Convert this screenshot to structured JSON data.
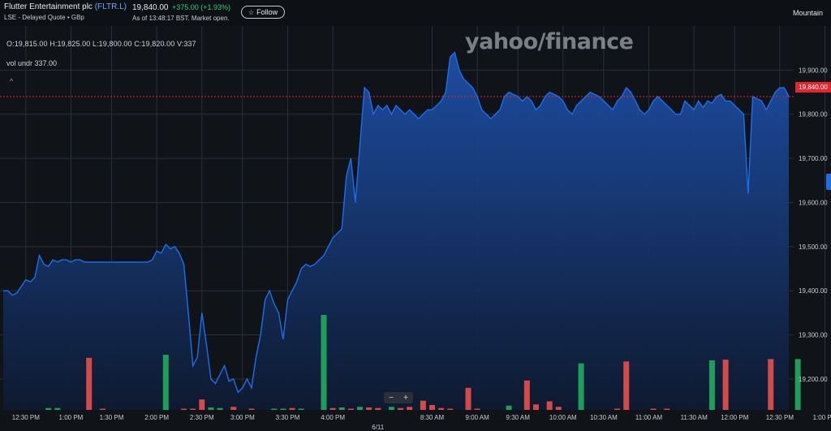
{
  "header": {
    "company_name": "Flutter Entertainment plc",
    "ticker": "(FLTR.L)",
    "sub": "LSE - Delayed Quote • GBp",
    "price": "19,840.00",
    "change": "+375.00  (+1.93%)",
    "as_of": "As of 13:48:17 BST. Market open.",
    "follow_label": "Follow",
    "timezone": "Mountain"
  },
  "overlay": {
    "ohlc": "O:19,815.00  H:19,825.00  L:19,800.00  C:19,820.00  V:337",
    "vol": "vol undr  337.00",
    "collapse": "^",
    "watermark": "yahoo/finance",
    "price_tag": "19,840.00",
    "zoom_minus": "−",
    "zoom_plus": "+"
  },
  "chart_data": {
    "type": "area",
    "y_axis": {
      "ticks": [
        19200,
        19300,
        19400,
        19500,
        19600,
        19700,
        19800,
        19900
      ],
      "tick_labels": [
        "19,200.00",
        "19,300.00",
        "19,400.00",
        "19,500.00",
        "19,600.00",
        "19,700.00",
        "19,800.00",
        "19,900.00"
      ],
      "ylim": [
        19130,
        20000
      ],
      "position": "right"
    },
    "x_axis": {
      "ticks": [
        {
          "i": 5,
          "label": "12:30 PM"
        },
        {
          "i": 15,
          "label": "1:00 PM"
        },
        {
          "i": 24,
          "label": "1:30 PM"
        },
        {
          "i": 34,
          "label": "2:00 PM"
        },
        {
          "i": 44,
          "label": "2:30 PM"
        },
        {
          "i": 53,
          "label": "3:00 PM"
        },
        {
          "i": 63,
          "label": "3:30 PM"
        },
        {
          "i": 73,
          "label": "4:00 PM"
        },
        {
          "i": 95,
          "label": "8:30 AM"
        },
        {
          "i": 105,
          "label": "9:00 AM"
        },
        {
          "i": 114,
          "label": "9:30 AM"
        },
        {
          "i": 124,
          "label": "10:00 AM"
        },
        {
          "i": 133,
          "label": "10:30 AM"
        },
        {
          "i": 143,
          "label": "11:00 AM"
        },
        {
          "i": 153,
          "label": "11:30 AM"
        },
        {
          "i": 162,
          "label": "12:00 PM"
        },
        {
          "i": 172,
          "label": "12:30 PM"
        },
        {
          "i": 182,
          "label": "1:00 PM"
        },
        {
          "i": 192,
          "label": "1:30 PM"
        }
      ],
      "day_label": {
        "i": 83,
        "label": "6/11"
      }
    },
    "last_price": 19840,
    "series": [
      {
        "values": [
          19400,
          19400,
          19390,
          19395,
          19410,
          19425,
          19420,
          19430,
          19480,
          19460,
          19455,
          19470,
          19465,
          19470,
          19470,
          19465,
          19470,
          19470,
          19465,
          19465,
          19465,
          19465,
          19465,
          19465,
          19465,
          19465,
          19465,
          19465,
          19465,
          19465,
          19465,
          19465,
          19465,
          19470,
          19490,
          19485,
          19505,
          19495,
          19500,
          19485,
          19460,
          19350,
          19230,
          19250,
          19350,
          19280,
          19200,
          19190,
          19210,
          19230,
          19195,
          19200,
          19170,
          19180,
          19200,
          19180,
          19250,
          19300,
          19380,
          19400,
          19370,
          19350,
          19290,
          19380,
          19400,
          19420,
          19450,
          19460,
          19455,
          19460,
          19470,
          19480,
          19500,
          19520,
          19530,
          19540,
          19660,
          19700,
          19600,
          19730,
          19860,
          19850,
          19800,
          19820,
          19810,
          19820,
          19800,
          19820,
          19810,
          19800,
          19810,
          19800,
          19790,
          19800,
          19810,
          19810,
          19820,
          19830,
          19850,
          19930,
          19940,
          19900,
          19880,
          19870,
          19860,
          19840,
          19810,
          19800,
          19790,
          19800,
          19810,
          19840,
          19850,
          19845,
          19840,
          19830,
          19840,
          19830,
          19810,
          19820,
          19840,
          19850,
          19845,
          19840,
          19830,
          19810,
          19800,
          19820,
          19830,
          19840,
          19850,
          19845,
          19840,
          19830,
          19820,
          19810,
          19830,
          19840,
          19860,
          19850,
          19830,
          19810,
          19800,
          19810,
          19830,
          19840,
          19830,
          19820,
          19810,
          19800,
          19800,
          19830,
          19820,
          19810,
          19830,
          19815,
          19830,
          19825,
          19840,
          19845,
          19830,
          19830,
          19820,
          19810,
          19800,
          19620,
          19840,
          19835,
          19830,
          19810,
          19830,
          19850,
          19860,
          19860,
          19840
        ]
      },
      {
        "name": "Volume",
        "type": "bar",
        "values": [
          0,
          0,
          0,
          0,
          0,
          0,
          0,
          0,
          0,
          0,
          0,
          0,
          0,
          0,
          0,
          0,
          0,
          0,
          0,
          0,
          0,
          0,
          0,
          0,
          0,
          0,
          0,
          0,
          0,
          0,
          0,
          0,
          0,
          0,
          0,
          0,
          0,
          0,
          0,
          0,
          0,
          0,
          0,
          0,
          0,
          0,
          0,
          0,
          0,
          0,
          0,
          0,
          0,
          0,
          0,
          0,
          0,
          0,
          0,
          0,
          0,
          0,
          0,
          0,
          0,
          0,
          0,
          0,
          0,
          0,
          0,
          0,
          0,
          0,
          0,
          0,
          0,
          0,
          0,
          0,
          0,
          0,
          0,
          0,
          0,
          0,
          0,
          0,
          0,
          0,
          0,
          0,
          0,
          0,
          0,
          0,
          0,
          0,
          0,
          0,
          0,
          0,
          0,
          0,
          0,
          0,
          0,
          0,
          0,
          0,
          0,
          0,
          0,
          0,
          0,
          0,
          0,
          0,
          0,
          0,
          0,
          0,
          0,
          0,
          0,
          0,
          0,
          0,
          0,
          0,
          0,
          0,
          0,
          0,
          0,
          0,
          0,
          0,
          0,
          0,
          0,
          0,
          0,
          0,
          0,
          0,
          0,
          0,
          0,
          0,
          0,
          0,
          0,
          0,
          0,
          0,
          0,
          0,
          0,
          0,
          0,
          0,
          0,
          0,
          0,
          0,
          0,
          0,
          0,
          0,
          0,
          0,
          0,
          0,
          0,
          0,
          0,
          0,
          0,
          0,
          0,
          0,
          0,
          0,
          0,
          0,
          0,
          0,
          0,
          0,
          0,
          0,
          0,
          0,
          0,
          0,
          0,
          0,
          0
        ]
      }
    ],
    "volume_bars": [
      {
        "i": 10,
        "v": 3,
        "dir": "up"
      },
      {
        "i": 12,
        "v": 3,
        "dir": "up"
      },
      {
        "i": 19,
        "v": 85,
        "dir": "down"
      },
      {
        "i": 22,
        "v": 1,
        "dir": "down"
      },
      {
        "i": 36,
        "v": 90,
        "dir": "up"
      },
      {
        "i": 40,
        "v": 2,
        "dir": "down"
      },
      {
        "i": 42,
        "v": 2,
        "dir": "down"
      },
      {
        "i": 44,
        "v": 17,
        "dir": "down"
      },
      {
        "i": 46,
        "v": 4,
        "dir": "up"
      },
      {
        "i": 48,
        "v": 3,
        "dir": "up"
      },
      {
        "i": 51,
        "v": 5,
        "dir": "down"
      },
      {
        "i": 55,
        "v": 1,
        "dir": "down"
      },
      {
        "i": 60,
        "v": 1,
        "dir": "up"
      },
      {
        "i": 62,
        "v": 2,
        "dir": "up"
      },
      {
        "i": 64,
        "v": 3,
        "dir": "down"
      },
      {
        "i": 66,
        "v": 2,
        "dir": "up"
      },
      {
        "i": 71,
        "v": 155,
        "dir": "up"
      },
      {
        "i": 73,
        "v": 3,
        "dir": "down"
      },
      {
        "i": 75,
        "v": 4,
        "dir": "up"
      },
      {
        "i": 77,
        "v": 2,
        "dir": "down"
      },
      {
        "i": 79,
        "v": 5,
        "dir": "up"
      },
      {
        "i": 81,
        "v": 4,
        "dir": "down"
      },
      {
        "i": 83,
        "v": 3,
        "dir": "down"
      },
      {
        "i": 86,
        "v": 5,
        "dir": "up"
      },
      {
        "i": 88,
        "v": 3,
        "dir": "down"
      },
      {
        "i": 90,
        "v": 5,
        "dir": "down"
      },
      {
        "i": 93,
        "v": 15,
        "dir": "down"
      },
      {
        "i": 95,
        "v": 8,
        "dir": "down"
      },
      {
        "i": 97,
        "v": 3,
        "dir": "down"
      },
      {
        "i": 99,
        "v": 2,
        "dir": "down"
      },
      {
        "i": 103,
        "v": 36,
        "dir": "down"
      },
      {
        "i": 105,
        "v": 2,
        "dir": "down"
      },
      {
        "i": 112,
        "v": 7,
        "dir": "up"
      },
      {
        "i": 116,
        "v": 48,
        "dir": "down"
      },
      {
        "i": 118,
        "v": 9,
        "dir": "down"
      },
      {
        "i": 121,
        "v": 14,
        "dir": "down"
      },
      {
        "i": 123,
        "v": 5,
        "dir": "down"
      },
      {
        "i": 128,
        "v": 76,
        "dir": "up"
      },
      {
        "i": 136,
        "v": 1,
        "dir": "down"
      },
      {
        "i": 138,
        "v": 79,
        "dir": "down"
      },
      {
        "i": 144,
        "v": 1,
        "dir": "down"
      },
      {
        "i": 147,
        "v": 1,
        "dir": "down"
      },
      {
        "i": 157,
        "v": 81,
        "dir": "up"
      },
      {
        "i": 160,
        "v": 82,
        "dir": "down"
      },
      {
        "i": 170,
        "v": 83,
        "dir": "down"
      },
      {
        "i": 176,
        "v": 83,
        "dir": "up"
      },
      {
        "i": 184,
        "v": 102,
        "dir": "down"
      },
      {
        "i": 186,
        "v": 1,
        "dir": "down"
      },
      {
        "i": 192,
        "v": 103,
        "dir": "up"
      }
    ],
    "colors": {
      "line": "#1a6ff0",
      "fill_top": "#1d4fa8",
      "fill_bottom": "#0e1a30",
      "up": "#1f9d5a",
      "down": "#d24a4a",
      "last_price_line": "#e0262e",
      "grid": "#2a2f38"
    }
  }
}
